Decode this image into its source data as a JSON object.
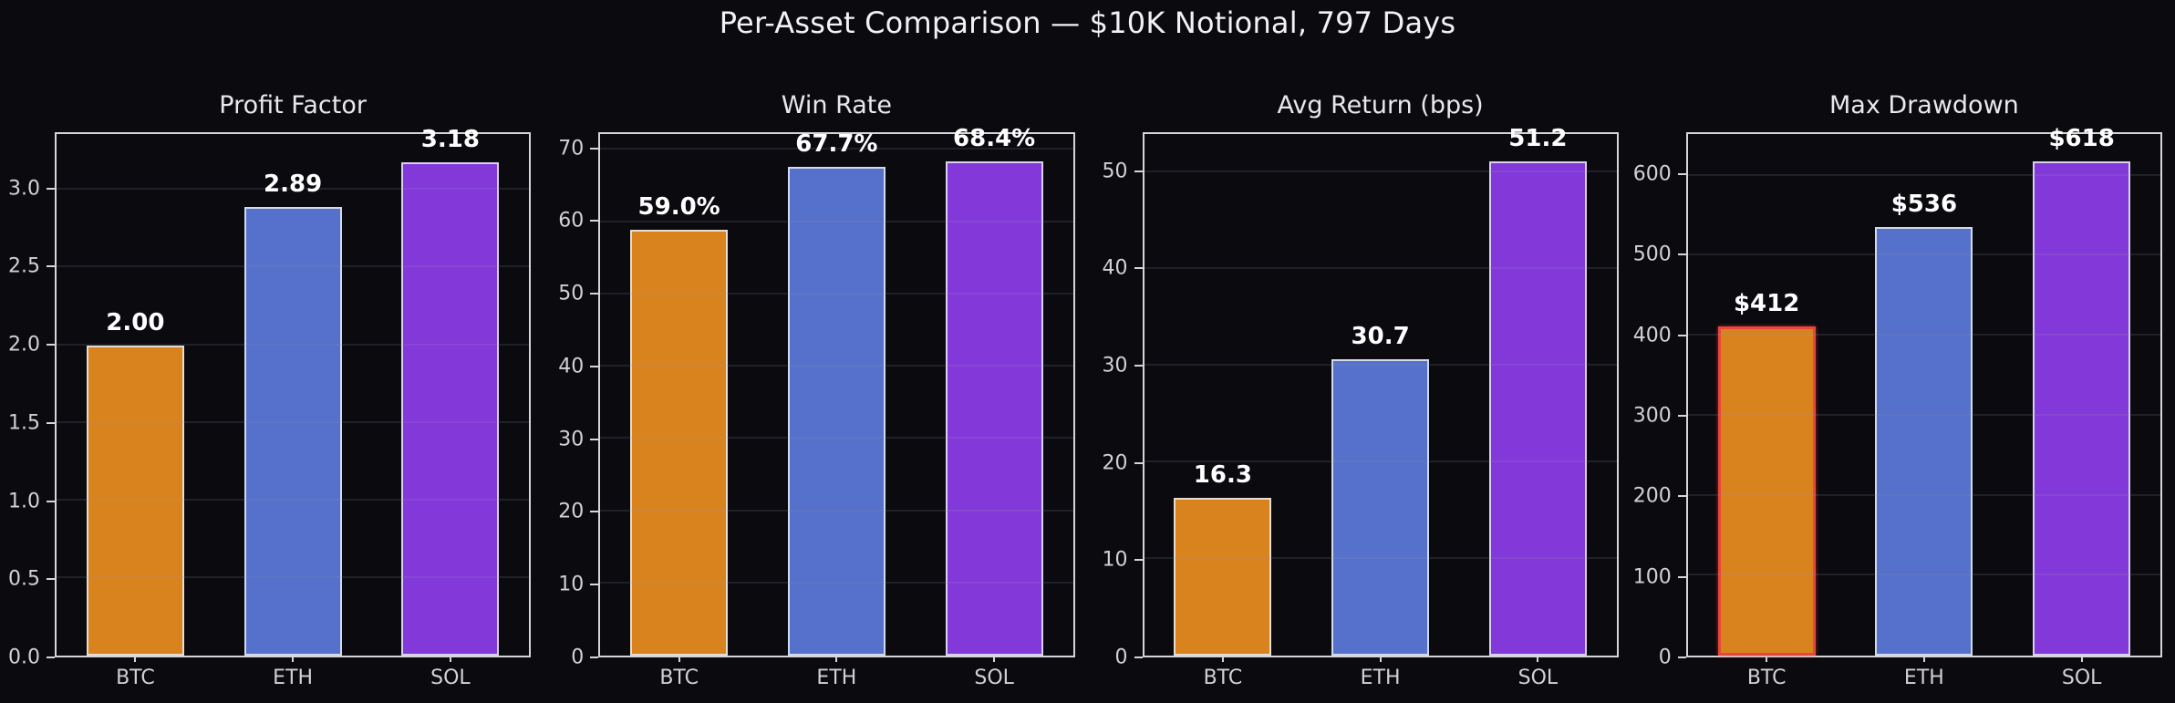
{
  "figure": {
    "suptitle": "Per-Asset Comparison — $10K Notional, 797 Days",
    "background": "#0a0a0f",
    "spine_color": "#d6d6da",
    "tick_label_color": "#d2d2d6",
    "title_color": "#f2f2f4",
    "grid_color": "rgba(150,150,172,0.16)",
    "bar_edge_color": "rgba(233,236,244,0.85)",
    "highlight_edge_color": "#e8463d",
    "bar_colors": [
      "#d9831e",
      "#5571cb",
      "#8339da"
    ]
  },
  "chart_data": [
    {
      "id": "profit-factor",
      "type": "bar",
      "title": "Profit Factor",
      "categories": [
        "BTC",
        "ETH",
        "SOL"
      ],
      "values": [
        2.0,
        2.89,
        3.18
      ],
      "bar_labels": [
        "2.00",
        "2.89",
        "3.18"
      ],
      "ytick_values": [
        0.0,
        0.5,
        1.0,
        1.5,
        2.0,
        2.5,
        3.0
      ],
      "ytick_labels": [
        "0.0",
        "0.5",
        "1.0",
        "1.5",
        "2.0",
        "2.5",
        "3.0"
      ],
      "ylim": [
        0,
        3.36
      ],
      "grid": true,
      "highlight_index": -1
    },
    {
      "id": "win-rate",
      "type": "bar",
      "title": "Win Rate",
      "categories": [
        "BTC",
        "ETH",
        "SOL"
      ],
      "values": [
        59.0,
        67.7,
        68.4
      ],
      "bar_labels": [
        "59.0%",
        "67.7%",
        "68.4%"
      ],
      "ytick_values": [
        0,
        10,
        20,
        30,
        40,
        50,
        60,
        70
      ],
      "ytick_labels": [
        "0",
        "10",
        "20",
        "30",
        "40",
        "50",
        "60",
        "70"
      ],
      "ylim": [
        0,
        72.2
      ],
      "grid": true,
      "highlight_index": -1
    },
    {
      "id": "avg-return-bps",
      "type": "bar",
      "title": "Avg Return (bps)",
      "categories": [
        "BTC",
        "ETH",
        "SOL"
      ],
      "values": [
        16.3,
        30.7,
        51.2
      ],
      "bar_labels": [
        "16.3",
        "30.7",
        "51.2"
      ],
      "ytick_values": [
        0,
        10,
        20,
        30,
        40,
        50
      ],
      "ytick_labels": [
        "0",
        "10",
        "20",
        "30",
        "40",
        "50"
      ],
      "ylim": [
        0,
        54.0
      ],
      "grid": true,
      "highlight_index": -1
    },
    {
      "id": "max-drawdown",
      "type": "bar",
      "title": "Max Drawdown",
      "categories": [
        "BTC",
        "ETH",
        "SOL"
      ],
      "values": [
        412,
        536,
        618
      ],
      "bar_labels": [
        "$412",
        "$536",
        "$618"
      ],
      "ytick_values": [
        0,
        100,
        200,
        300,
        400,
        500,
        600
      ],
      "ytick_labels": [
        "0",
        "100",
        "200",
        "300",
        "400",
        "500",
        "600"
      ],
      "ylim": [
        0,
        652
      ],
      "grid": true,
      "highlight_index": 0
    }
  ]
}
